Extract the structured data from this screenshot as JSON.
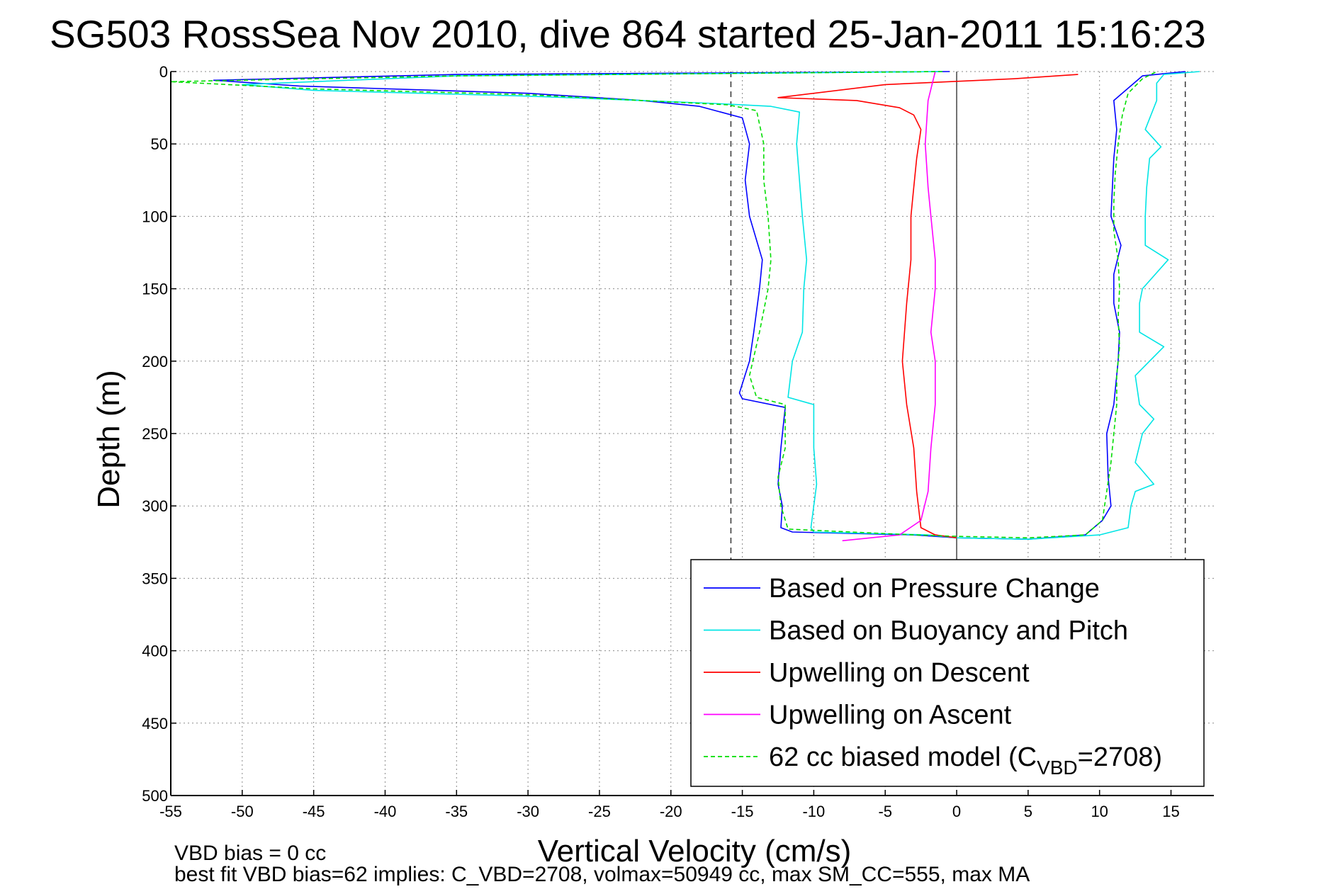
{
  "chart_data": {
    "type": "line",
    "title": "SG503 RossSea Nov 2010, dive 864 started 25-Jan-2011 15:16:23",
    "xlabel": "Vertical Velocity (cm/s)",
    "ylabel": "Depth (m)",
    "xlim": [
      -55,
      18
    ],
    "ylim": [
      0,
      500
    ],
    "y_reversed": true,
    "grid": true,
    "legend_position": "lower-right",
    "x_ticks": [
      "-55",
      "-50",
      "-45",
      "-40",
      "-35",
      "-30",
      "-25",
      "-20",
      "-15",
      "-10",
      "-5",
      "0",
      "5",
      "10",
      "15"
    ],
    "y_ticks": [
      "0",
      "50",
      "100",
      "150",
      "200",
      "250",
      "300",
      "350",
      "400",
      "450",
      "500"
    ],
    "reference_lines": [
      {
        "kind": "dashed-vertical",
        "x": -15.8,
        "y_range": [
          0,
          340
        ]
      },
      {
        "kind": "dashed-vertical",
        "x": 16,
        "y_range": [
          0,
          340
        ]
      },
      {
        "kind": "solid-vertical",
        "x": 0,
        "y_range": [
          0,
          340
        ]
      }
    ],
    "series": [
      {
        "name": "Based on Pressure Change",
        "color": "#0000ff",
        "points": [
          [
            -0.5,
            0
          ],
          [
            -35,
            2
          ],
          [
            -52,
            6
          ],
          [
            -46,
            10
          ],
          [
            -30,
            15
          ],
          [
            -22,
            20
          ],
          [
            -18,
            24
          ],
          [
            -15,
            32
          ],
          [
            -14.5,
            50
          ],
          [
            -14.8,
            75
          ],
          [
            -14.5,
            100
          ],
          [
            -13.6,
            130
          ],
          [
            -13.8,
            150
          ],
          [
            -14.2,
            180
          ],
          [
            -14.5,
            200
          ],
          [
            -15.2,
            222
          ],
          [
            -15,
            226
          ],
          [
            -12,
            232
          ],
          [
            -12.3,
            260
          ],
          [
            -12.5,
            285
          ],
          [
            -12.2,
            300
          ],
          [
            -12.3,
            315
          ],
          [
            -11.5,
            318
          ],
          [
            -3,
            320
          ],
          [
            0,
            322
          ],
          [
            5,
            323
          ],
          [
            9,
            320
          ],
          [
            10.2,
            310
          ],
          [
            10.8,
            300
          ],
          [
            10.6,
            280
          ],
          [
            10.5,
            250
          ],
          [
            11,
            230
          ],
          [
            11.3,
            200
          ],
          [
            11.4,
            180
          ],
          [
            11,
            160
          ],
          [
            11,
            140
          ],
          [
            11.5,
            120
          ],
          [
            10.8,
            100
          ],
          [
            10.9,
            80
          ],
          [
            11,
            60
          ],
          [
            11.2,
            40
          ],
          [
            11,
            20
          ],
          [
            13,
            3
          ],
          [
            16,
            0
          ]
        ]
      },
      {
        "name": "Based on Buoyancy and Pitch",
        "color": "#00e5e5",
        "points": [
          [
            -1,
            0
          ],
          [
            -35,
            3
          ],
          [
            -50,
            9
          ],
          [
            -45,
            13
          ],
          [
            -30,
            17
          ],
          [
            -22,
            20
          ],
          [
            -17,
            22
          ],
          [
            -13,
            24
          ],
          [
            -11,
            28
          ],
          [
            -11.2,
            50
          ],
          [
            -11,
            75
          ],
          [
            -10.8,
            100
          ],
          [
            -10.5,
            130
          ],
          [
            -10.7,
            150
          ],
          [
            -10.8,
            180
          ],
          [
            -11.5,
            200
          ],
          [
            -11.8,
            225
          ],
          [
            -10,
            230
          ],
          [
            -10,
            260
          ],
          [
            -9.8,
            285
          ],
          [
            -10,
            300
          ],
          [
            -10.2,
            315
          ],
          [
            -10,
            318
          ],
          [
            -2,
            320
          ],
          [
            0,
            322
          ],
          [
            5,
            323
          ],
          [
            10,
            320
          ],
          [
            12,
            315
          ],
          [
            12.2,
            300
          ],
          [
            12.5,
            290
          ],
          [
            13.8,
            285
          ],
          [
            12.5,
            270
          ],
          [
            13,
            250
          ],
          [
            13.8,
            240
          ],
          [
            12.8,
            230
          ],
          [
            12.5,
            210
          ],
          [
            14.5,
            190
          ],
          [
            12.8,
            180
          ],
          [
            12.8,
            160
          ],
          [
            13,
            150
          ],
          [
            14.8,
            130
          ],
          [
            13.2,
            120
          ],
          [
            13.2,
            100
          ],
          [
            13.3,
            80
          ],
          [
            13.5,
            60
          ],
          [
            14.3,
            52
          ],
          [
            13.2,
            40
          ],
          [
            14,
            20
          ],
          [
            14,
            8
          ],
          [
            14.5,
            2
          ],
          [
            17,
            0
          ]
        ]
      },
      {
        "name": "Upwelling on Descent",
        "color": "#ff0000",
        "points": [
          [
            8.5,
            2
          ],
          [
            4,
            5
          ],
          [
            -5,
            9
          ],
          [
            -10,
            15
          ],
          [
            -12.5,
            18
          ],
          [
            -7,
            20
          ],
          [
            -4,
            25
          ],
          [
            -3,
            30
          ],
          [
            -2.5,
            40
          ],
          [
            -2.8,
            60
          ],
          [
            -3,
            80
          ],
          [
            -3.2,
            100
          ],
          [
            -3.2,
            130
          ],
          [
            -3.5,
            160
          ],
          [
            -3.8,
            200
          ],
          [
            -3.5,
            230
          ],
          [
            -3,
            260
          ],
          [
            -2.8,
            290
          ],
          [
            -2.5,
            315
          ],
          [
            -1.5,
            320
          ],
          [
            0,
            322
          ]
        ]
      },
      {
        "name": "Upwelling on Ascent",
        "color": "#ff00ff",
        "points": [
          [
            -1.5,
            0
          ],
          [
            -2,
            20
          ],
          [
            -2.2,
            50
          ],
          [
            -2,
            80
          ],
          [
            -1.8,
            100
          ],
          [
            -1.5,
            130
          ],
          [
            -1.5,
            150
          ],
          [
            -1.8,
            180
          ],
          [
            -1.5,
            200
          ],
          [
            -1.5,
            230
          ],
          [
            -1.8,
            260
          ],
          [
            -2,
            290
          ],
          [
            -2.5,
            310
          ],
          [
            -4,
            320
          ],
          [
            -8,
            324
          ]
        ]
      },
      {
        "name": "62 cc biased model (C_VBD=2708)",
        "color": "#00dd00",
        "dashed": true,
        "points": [
          [
            -1,
            0
          ],
          [
            -35,
            3
          ],
          [
            -55,
            7
          ],
          [
            -45,
            12
          ],
          [
            -30,
            16
          ],
          [
            -22,
            20
          ],
          [
            -16,
            23
          ],
          [
            -14,
            27
          ],
          [
            -13.5,
            50
          ],
          [
            -13.5,
            75
          ],
          [
            -13.2,
            100
          ],
          [
            -13,
            130
          ],
          [
            -13.2,
            150
          ],
          [
            -13.8,
            180
          ],
          [
            -14.5,
            210
          ],
          [
            -14,
            225
          ],
          [
            -12,
            230
          ],
          [
            -12,
            260
          ],
          [
            -12.5,
            280
          ],
          [
            -12.3,
            300
          ],
          [
            -11.8,
            316
          ],
          [
            -3,
            320
          ],
          [
            0,
            321
          ],
          [
            5,
            322
          ],
          [
            9,
            320
          ],
          [
            10.2,
            310
          ],
          [
            10.5,
            290
          ],
          [
            10.8,
            270
          ],
          [
            11,
            250
          ],
          [
            11.2,
            230
          ],
          [
            11.2,
            210
          ],
          [
            11.4,
            190
          ],
          [
            11.3,
            170
          ],
          [
            11.4,
            150
          ],
          [
            11.3,
            130
          ],
          [
            11,
            110
          ],
          [
            11,
            90
          ],
          [
            11.1,
            70
          ],
          [
            11.3,
            50
          ],
          [
            11.6,
            30
          ],
          [
            12,
            15
          ],
          [
            13,
            5
          ],
          [
            14,
            0
          ]
        ]
      }
    ],
    "legend_labels": [
      {
        "text": "Based on Pressure Change"
      },
      {
        "text": "Based on Buoyancy and Pitch"
      },
      {
        "text": "Upwelling on Descent"
      },
      {
        "text": "Upwelling on Ascent"
      },
      {
        "pre": "62 cc biased model (C",
        "sub": "VBD",
        "post": "=2708)"
      }
    ],
    "annotations": [
      "VBD bias = 0 cc",
      "best fit VBD bias=62 implies: C_VBD=2708, volmax=50949 cc, max SM_CC=555, max MA"
    ]
  }
}
